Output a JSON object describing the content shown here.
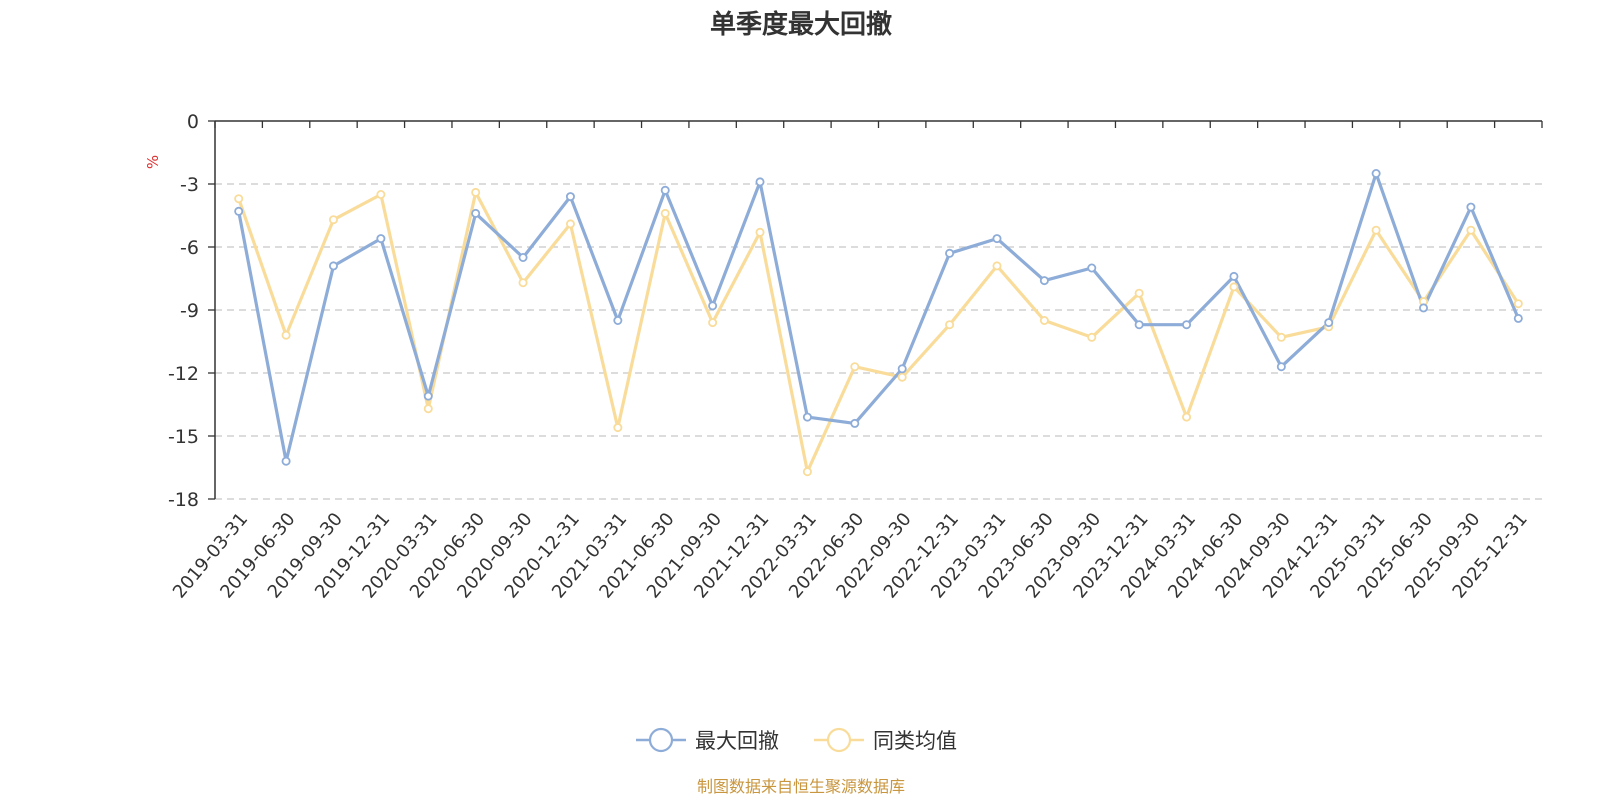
{
  "chart_data": {
    "type": "line",
    "title": "单季度最大回撤",
    "ylabel": "%",
    "ylim": [
      -18,
      0
    ],
    "yticks": [
      0,
      -3,
      -6,
      -9,
      -12,
      -15,
      -18
    ],
    "grid": true,
    "legend_position": "bottom",
    "categories": [
      "2019-03-31",
      "2019-06-30",
      "2019-09-30",
      "2019-12-31",
      "2020-03-31",
      "2020-06-30",
      "2020-09-30",
      "2020-12-31",
      "2021-03-31",
      "2021-06-30",
      "2021-09-30",
      "2021-12-31",
      "2022-03-31",
      "2022-06-30",
      "2022-09-30",
      "2022-12-31",
      "2023-03-31",
      "2023-06-30",
      "2023-09-30",
      "2023-12-31",
      "2024-03-31",
      "2024-06-30",
      "2024-09-30",
      "2024-12-31",
      "2025-03-31",
      "2025-06-30",
      "2025-09-30",
      "2025-12-31"
    ],
    "series": [
      {
        "name": "最大回撤",
        "color": "#8eacd8",
        "values": [
          -4.3,
          -16.2,
          -6.9,
          -5.6,
          -13.1,
          -4.4,
          -6.5,
          -3.6,
          -9.5,
          -3.3,
          -8.8,
          -2.9,
          -14.1,
          -14.4,
          -11.8,
          -6.3,
          -5.6,
          -7.6,
          -7.0,
          -9.7,
          -9.7,
          -7.4,
          -11.7,
          -9.6,
          -2.5,
          -8.9,
          -4.1,
          -9.4
        ]
      },
      {
        "name": "同类均值",
        "color": "#f9dc9a",
        "values": [
          -3.7,
          -10.2,
          -4.7,
          -3.5,
          -13.7,
          -3.4,
          -7.7,
          -4.9,
          -14.6,
          -4.4,
          -9.6,
          -5.3,
          -16.7,
          -11.7,
          -12.2,
          -9.7,
          -6.9,
          -9.5,
          -10.3,
          -8.2,
          -14.1,
          -7.9,
          -10.3,
          -9.8,
          -5.2,
          -8.6,
          -5.2,
          -8.7
        ]
      }
    ]
  },
  "source": {
    "text": "制图数据来自恒生聚源数据库",
    "color": "#c8963e"
  },
  "unit_color": "#e03030"
}
